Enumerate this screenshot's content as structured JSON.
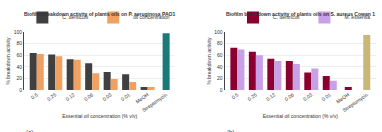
{
  "chart_data": [
    {
      "type": "bar",
      "title": "Biofilm breakdown activity of plants oils on P. aeruginosa PAO1",
      "x_label": "Essential oil concentration (% v/v)",
      "y_label": "% breakdown activity",
      "categories": [
        "0.5",
        "0.25",
        "0.12",
        "0.06",
        "0.03",
        "0.01",
        "MeOH",
        "Streptomycin"
      ],
      "series": [
        {
          "name": "C. denticulli",
          "color": "#404040",
          "colors": [
            "#404040",
            "#404040",
            "#404040",
            "#404040",
            "#404040",
            "#404040",
            "#404040",
            "#1a7a7a"
          ],
          "values": [
            64,
            61,
            53,
            46,
            31,
            27,
            5,
            98
          ]
        },
        {
          "name": "oil concentration",
          "color": "#f0a060",
          "values": [
            62,
            58,
            52,
            29,
            19,
            14,
            5,
            null
          ]
        }
      ],
      "ylim": [
        0,
        100
      ],
      "yticks": [
        0,
        20,
        40,
        60,
        80,
        100
      ],
      "grid": true,
      "legend": "upper right",
      "annotations": [
        "(a)"
      ]
    },
    {
      "type": "bar",
      "title": "Biofilm breakdown activity of plants oils on S. aureus Cowan 1",
      "x_label": "Essential oil concentration (% v/v)",
      "y_label": "% breakdown activity",
      "categories": [
        "0.5",
        "0.25",
        "0.12",
        "0.06",
        "0.03",
        "0.01",
        "MeOH",
        "Streptomycin"
      ],
      "series": [
        {
          "name": "C. dentriculi",
          "color": "#8b0030",
          "colors": [
            "#8b0030",
            "#8b0030",
            "#8b0030",
            "#8b0030",
            "#8b0030",
            "#8b0030",
            "#8b0030",
            "#c8b878"
          ],
          "values": [
            73,
            66,
            54,
            50,
            30,
            24,
            5,
            95
          ]
        },
        {
          "name": "M. essentia",
          "color": "#c8a0e8",
          "values": [
            70,
            60,
            50,
            45,
            37,
            16,
            null,
            null
          ]
        }
      ],
      "ylim": [
        0,
        100
      ],
      "yticks": [
        0,
        20,
        40,
        60,
        80,
        100
      ],
      "grid": true,
      "legend": "upper right",
      "annotations": [
        "(b)"
      ]
    }
  ]
}
